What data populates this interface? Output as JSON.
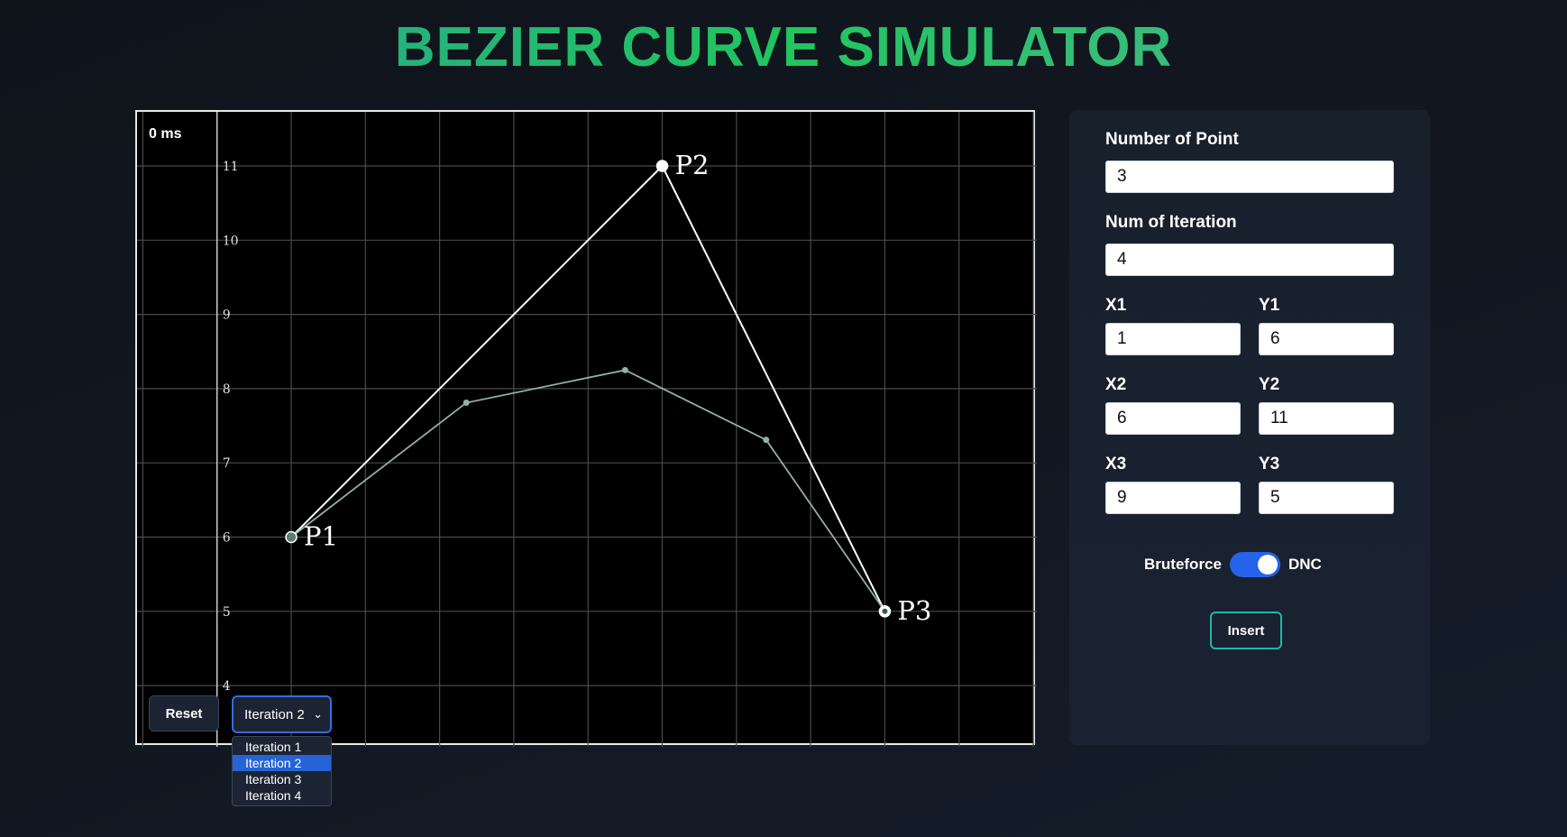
{
  "title": "BEZIER CURVE SIMULATOR",
  "canvas": {
    "timer": "0 ms",
    "y_ticks": [
      "11",
      "10",
      "9",
      "8",
      "7",
      "6",
      "5",
      "4"
    ],
    "control_points": [
      {
        "label": "P1",
        "x": 1,
        "y": 6
      },
      {
        "label": "P2",
        "x": 6,
        "y": 11
      },
      {
        "label": "P3",
        "x": 9,
        "y": 5
      }
    ],
    "curve_points": [
      {
        "x": 1,
        "y": 6
      },
      {
        "x": 3.36,
        "y": 7.81
      },
      {
        "x": 5.5,
        "y": 8.25
      },
      {
        "x": 7.4,
        "y": 7.31
      },
      {
        "x": 9,
        "y": 5
      }
    ],
    "colors": {
      "control_line": "#ffffff",
      "curve": "#8fb3a6",
      "grid": "#4a4a4a"
    },
    "reset_label": "Reset",
    "iteration_selected": "Iteration 2",
    "iteration_options": [
      "Iteration 1",
      "Iteration 2",
      "Iteration 3",
      "Iteration 4"
    ]
  },
  "panel": {
    "num_points_label": "Number of Point",
    "num_points_value": "3",
    "num_iter_label": "Num of Iteration",
    "num_iter_value": "4",
    "points": [
      {
        "x_label": "X1",
        "x_value": "1",
        "y_label": "Y1",
        "y_value": "6"
      },
      {
        "x_label": "X2",
        "x_value": "6",
        "y_label": "Y2",
        "y_value": "11"
      },
      {
        "x_label": "X3",
        "x_value": "9",
        "y_label": "Y3",
        "y_value": "5"
      }
    ],
    "toggle_left": "Bruteforce",
    "toggle_right": "DNC",
    "insert_label": "Insert"
  }
}
